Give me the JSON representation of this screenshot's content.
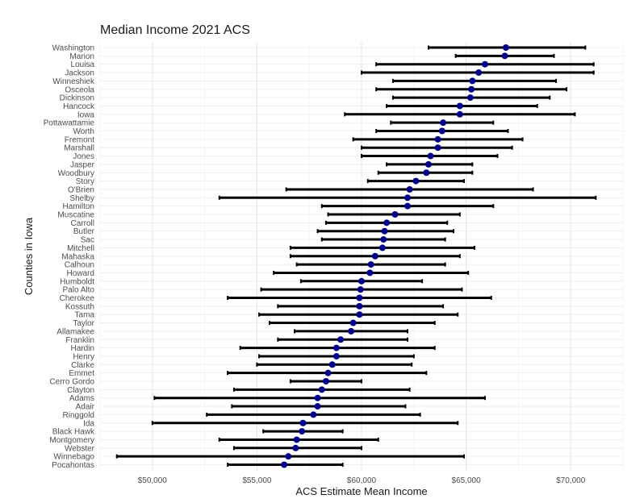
{
  "chart_data": {
    "type": "errorbar",
    "title": "Median Income 2021 ACS",
    "xlabel": "ACS Estimate Mean Income",
    "ylabel": "Counties in Iowa",
    "xlim": [
      47500,
      72500
    ],
    "x_ticks": [
      50000,
      55000,
      60000,
      65000,
      70000
    ],
    "x_tick_labels": [
      "$50,000",
      "$55,000",
      "$60,000",
      "$65,000",
      "$70,000"
    ],
    "grid": true,
    "point_color": "#00008b",
    "bar_color": "#000000",
    "categories": [
      "Washington",
      "Marion",
      "Louisa",
      "Jackson",
      "Winneshiek",
      "Osceola",
      "Dickinson",
      "Hancock",
      "Iowa",
      "Pottawattamie",
      "Worth",
      "Fremont",
      "Marshall",
      "Jones",
      "Jasper",
      "Woodbury",
      "Story",
      "O'Brien",
      "Shelby",
      "Hamilton",
      "Muscatine",
      "Carroll",
      "Butler",
      "Sac",
      "Mitchell",
      "Mahaska",
      "Calhoun",
      "Howard",
      "Humboldt",
      "Palo Alto",
      "Cherokee",
      "Kossuth",
      "Tama",
      "Taylor",
      "Allamakee",
      "Franklin",
      "Hardin",
      "Henry",
      "Clarke",
      "Emmet",
      "Cerro Gordo",
      "Clayton",
      "Adams",
      "Adair",
      "Ringgold",
      "Ida",
      "Black Hawk",
      "Montgomery",
      "Webster",
      "Winnebago",
      "Pocahontas"
    ],
    "values": [
      66900,
      66850,
      65900,
      65600,
      65300,
      65250,
      65200,
      64700,
      64700,
      63900,
      63850,
      63650,
      63650,
      63300,
      63200,
      63100,
      62600,
      62300,
      62200,
      62200,
      61600,
      61200,
      61100,
      61050,
      61000,
      60650,
      60450,
      60400,
      60000,
      59950,
      59900,
      59900,
      59900,
      59600,
      59500,
      59000,
      58800,
      58800,
      58600,
      58400,
      58300,
      58100,
      57900,
      57900,
      57700,
      57200,
      57150,
      56900,
      56850,
      56500,
      56300
    ],
    "lower": [
      63200,
      64500,
      60700,
      60000,
      61500,
      60700,
      61500,
      61200,
      59200,
      61400,
      60700,
      59600,
      60000,
      60000,
      61200,
      60800,
      60300,
      56400,
      53200,
      58100,
      58400,
      58300,
      57900,
      58100,
      56600,
      56600,
      56900,
      55800,
      57100,
      55200,
      53600,
      56000,
      55100,
      55600,
      56800,
      56000,
      54200,
      55100,
      55000,
      53600,
      56600,
      53900,
      50100,
      53800,
      52600,
      50000,
      55300,
      53200,
      53900,
      48300,
      53600
    ],
    "upper": [
      70700,
      69200,
      71100,
      71100,
      69300,
      69800,
      69000,
      68400,
      70200,
      66300,
      67000,
      67700,
      67200,
      66500,
      65300,
      65300,
      64900,
      68200,
      71200,
      66300,
      64700,
      64100,
      64400,
      64000,
      65400,
      64700,
      64000,
      65100,
      62900,
      64800,
      66200,
      63900,
      64600,
      63500,
      62200,
      62200,
      63500,
      62500,
      62400,
      63100,
      60000,
      62300,
      65900,
      62100,
      62800,
      64600,
      59100,
      60800,
      60000,
      64900,
      59100
    ]
  }
}
